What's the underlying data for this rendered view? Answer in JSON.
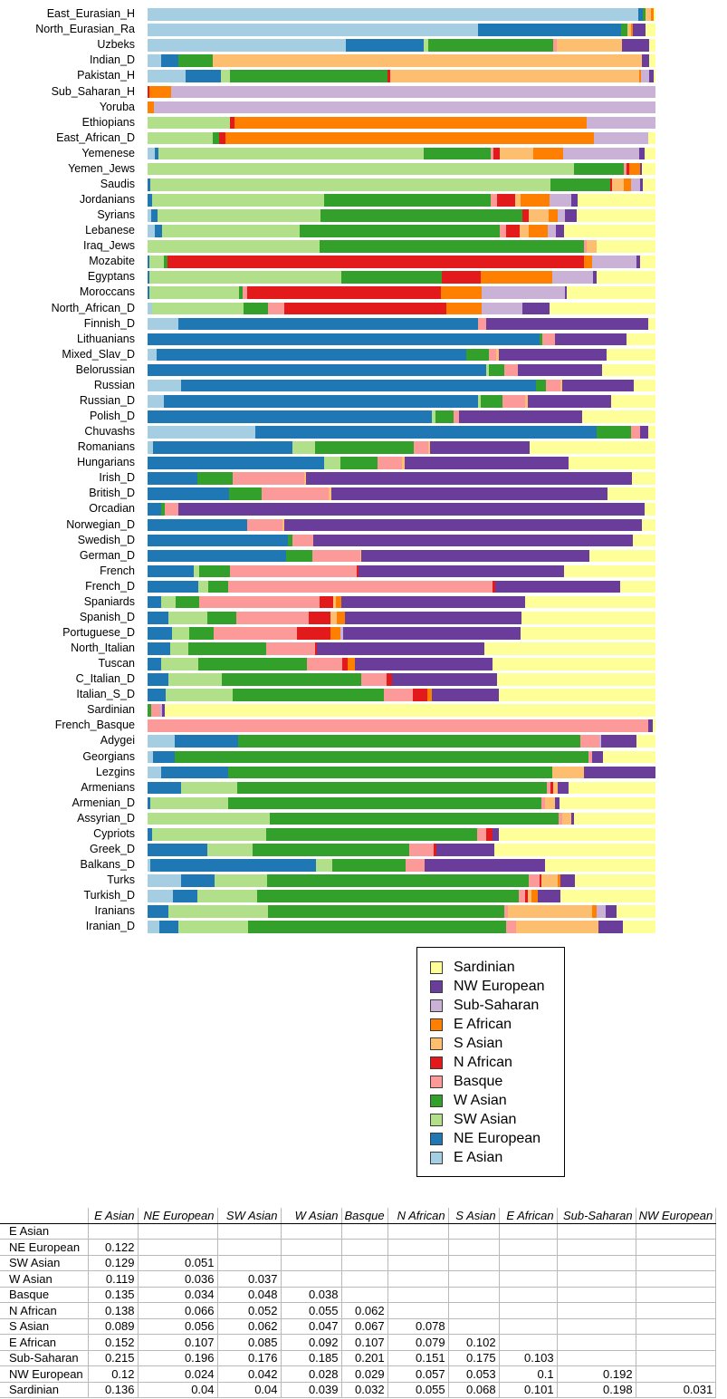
{
  "chart_data": {
    "type": "bar",
    "orientation": "horizontal-stacked",
    "title": "",
    "xlabel": "",
    "ylabel": "",
    "unit": "percent of ancestry component per population",
    "xlim": [
      0,
      100
    ],
    "grid": false,
    "components": [
      "E Asian",
      "NE European",
      "SW Asian",
      "W Asian",
      "Basque",
      "N African",
      "S Asian",
      "E African",
      "Sub-Saharan",
      "NW European",
      "Sardinian"
    ],
    "colors": [
      "#A6CEE3",
      "#1F78B4",
      "#B2DF8A",
      "#33A02C",
      "#FB9A99",
      "#E31A1C",
      "#FDBF6F",
      "#FF7F00",
      "#CAB2D6",
      "#6A3D9A",
      "#FFFF99"
    ],
    "rows": [
      {
        "label": "East_Eurasian_H",
        "values": [
          96.6,
          0.9,
          0,
          0.6,
          0,
          0,
          1.0,
          0.5,
          0,
          0,
          0.4
        ]
      },
      {
        "label": "North_Eurasian_Ra",
        "values": [
          65.1,
          28.1,
          0,
          1.2,
          0,
          0,
          0.8,
          0.4,
          0,
          2.5,
          1.9
        ]
      },
      {
        "label": "Uzbeks",
        "values": [
          39.1,
          15.3,
          0.9,
          24.6,
          0.6,
          0,
          12.9,
          0,
          0,
          5.4,
          1.2
        ]
      },
      {
        "label": "Indian_D",
        "values": [
          2.6,
          3.5,
          0,
          6.7,
          0,
          0,
          84.5,
          0,
          0,
          1.5,
          1.2
        ]
      },
      {
        "label": "Pakistan_H",
        "values": [
          7.5,
          6.9,
          1.8,
          31.1,
          0,
          0.4,
          49.1,
          0.3,
          1.6,
          0.9,
          0.4
        ]
      },
      {
        "label": "Sub_Saharan_H",
        "values": [
          0,
          0,
          0,
          0,
          0,
          0.4,
          0,
          4.2,
          95.4,
          0,
          0
        ]
      },
      {
        "label": "Yoruba",
        "values": [
          0,
          0,
          0,
          0,
          0,
          0,
          0,
          1.2,
          98.8,
          0,
          0
        ]
      },
      {
        "label": "Ethiopians",
        "values": [
          0,
          0,
          16.2,
          0,
          0,
          1.0,
          0,
          69.3,
          13.5,
          0,
          0
        ]
      },
      {
        "label": "East_African_D",
        "values": [
          0,
          0,
          12.8,
          1.3,
          0,
          1.2,
          0,
          72.6,
          10.7,
          0,
          1.4
        ]
      },
      {
        "label": "Yemenese",
        "values": [
          1.4,
          0.7,
          52.2,
          13.3,
          0.5,
          1.2,
          6.6,
          5.9,
          14.9,
          1.2,
          2.1
        ]
      },
      {
        "label": "Yemen_Jews",
        "values": [
          0,
          0,
          84.0,
          9.8,
          0.5,
          0.5,
          0,
          2.1,
          0,
          0.5,
          2.6
        ]
      },
      {
        "label": "Saudis",
        "values": [
          0,
          0.6,
          78.7,
          11.7,
          0,
          0.5,
          2.3,
          1.4,
          1.8,
          0.5,
          2.5
        ]
      },
      {
        "label": "Jordanians",
        "values": [
          0,
          0.9,
          33.8,
          32.9,
          1.2,
          3.6,
          1.1,
          5.7,
          4.3,
          1.1,
          15.4
        ]
      },
      {
        "label": "Syrians",
        "values": [
          0.7,
          1.2,
          31.9,
          39.7,
          0,
          1.1,
          3.9,
          1.8,
          1.4,
          2.3,
          15.5
        ]
      },
      {
        "label": "Lebanese",
        "values": [
          1.4,
          1.4,
          27.0,
          39.3,
          1.2,
          2.7,
          1.8,
          3.6,
          1.6,
          1.6,
          18.0
        ]
      },
      {
        "label": "Iraq_Jews",
        "values": [
          0,
          0,
          33.8,
          52.1,
          0.5,
          0,
          2.0,
          0,
          0,
          0,
          11.6
        ]
      },
      {
        "label": "Mozabite",
        "values": [
          0,
          0.4,
          2.8,
          0.7,
          0,
          81.5,
          0,
          1.6,
          8.7,
          0.7,
          3.1
        ]
      },
      {
        "label": "Egyptans",
        "values": [
          0,
          0.4,
          37.7,
          19.8,
          0,
          7.7,
          0,
          14.1,
          8.0,
          0.7,
          11.6
        ]
      },
      {
        "label": "Moroccans",
        "values": [
          0,
          0.4,
          17.6,
          0.7,
          0.9,
          38.1,
          0,
          8.0,
          16.4,
          0.4,
          17.5
        ]
      },
      {
        "label": "North_African_D",
        "values": [
          0.9,
          0,
          18.0,
          4.8,
          3.2,
          32.0,
          0,
          6.9,
          8.0,
          5.3,
          20.9
        ]
      },
      {
        "label": "Finnish_D",
        "values": [
          6.0,
          59.1,
          0,
          0,
          1.6,
          0,
          0,
          0,
          0,
          31.8,
          1.5
        ]
      },
      {
        "label": "Lithuanians",
        "values": [
          0,
          77.2,
          0,
          0.5,
          2.5,
          0,
          0,
          0,
          0,
          14.1,
          5.7
        ]
      },
      {
        "label": "Mixed_Slav_D",
        "values": [
          1.8,
          61.0,
          0,
          4.4,
          1.4,
          0,
          0.5,
          0,
          0,
          21.2,
          9.7
        ]
      },
      {
        "label": "Belorussian",
        "values": [
          0,
          66.7,
          0.5,
          3.0,
          2.7,
          0,
          0,
          0,
          0,
          16.5,
          10.6
        ]
      },
      {
        "label": "Russian",
        "values": [
          6.6,
          69.8,
          0,
          2.1,
          2.7,
          0,
          0.5,
          0,
          0,
          14.1,
          4.2
        ]
      },
      {
        "label": "Russian_D",
        "values": [
          3.2,
          61.9,
          0.5,
          4.3,
          4.4,
          0,
          0.5,
          0,
          0,
          16.5,
          8.7
        ]
      },
      {
        "label": "Polish_D",
        "values": [
          0,
          56.0,
          0.6,
          3.7,
          1.1,
          0,
          0,
          0,
          0,
          24.2,
          14.4
        ]
      },
      {
        "label": "Chuvashs",
        "values": [
          21.2,
          67.3,
          0,
          6.6,
          1.8,
          0,
          0,
          0,
          0,
          1.6,
          1.5
        ]
      },
      {
        "label": "Romanians",
        "values": [
          1.0,
          27.6,
          4.4,
          19.4,
          2.8,
          0,
          0.5,
          0,
          0,
          19.6,
          24.7
        ]
      },
      {
        "label": "Hungarians",
        "values": [
          0,
          34.7,
          3.2,
          7.3,
          4.8,
          0,
          0.7,
          0,
          0,
          32.2,
          17.1
        ]
      },
      {
        "label": "Irish_D",
        "values": [
          0,
          9.8,
          0,
          6.9,
          14.1,
          0,
          0.4,
          0,
          0,
          64.1,
          4.7
        ]
      },
      {
        "label": "British_D",
        "values": [
          0,
          16.0,
          0,
          6.4,
          13.3,
          0,
          0.4,
          0,
          0,
          54.4,
          9.5
        ]
      },
      {
        "label": "Orcadian",
        "values": [
          0,
          2.7,
          0,
          0.6,
          2.8,
          0,
          0,
          0,
          0,
          91.7,
          2.2
        ]
      },
      {
        "label": "Norwegian_D",
        "values": [
          0,
          19.6,
          0,
          0,
          6.9,
          0,
          0.4,
          0,
          0,
          70.5,
          2.6
        ]
      },
      {
        "label": "Swedish_D",
        "values": [
          0,
          27.6,
          0,
          0.9,
          4.1,
          0,
          0,
          0,
          0,
          63.0,
          4.4
        ]
      },
      {
        "label": "German_D",
        "values": [
          0,
          27.2,
          0,
          5.2,
          9.4,
          0,
          0.3,
          0,
          0,
          44.8,
          13.1
        ]
      },
      {
        "label": "French",
        "values": [
          0,
          9.1,
          1.1,
          6.0,
          24.9,
          0.5,
          0,
          0,
          0,
          40.4,
          18.0
        ]
      },
      {
        "label": "French_D",
        "values": [
          0,
          10.0,
          2.0,
          3.9,
          52.1,
          0.4,
          0,
          0,
          0,
          24.7,
          6.9
        ]
      },
      {
        "label": "Spaniards",
        "values": [
          0,
          2.7,
          2.8,
          4.6,
          23.8,
          2.7,
          0.4,
          1.2,
          0,
          36.1,
          25.7
        ]
      },
      {
        "label": "Spanish_D",
        "values": [
          0,
          4.1,
          7.7,
          5.7,
          14.2,
          4.3,
          1.2,
          1.6,
          0,
          34.9,
          26.3
        ]
      },
      {
        "label": "Portuguese_D",
        "values": [
          0,
          4.8,
          3.4,
          4.8,
          16.4,
          6.6,
          0,
          2.0,
          0.5,
          34.9,
          26.6
        ]
      },
      {
        "label": "North_Italian",
        "values": [
          0,
          4.4,
          3.6,
          15.3,
          9.6,
          0.5,
          0,
          0,
          0,
          32.9,
          33.7
        ]
      },
      {
        "label": "Tuscan",
        "values": [
          0,
          2.7,
          7.3,
          21.4,
          7.0,
          1.0,
          0,
          1.4,
          0,
          27.2,
          32.0
        ]
      },
      {
        "label": "C_Italian_D",
        "values": [
          0,
          4.1,
          10.5,
          27.4,
          5.0,
          1.2,
          0,
          0,
          0,
          20.6,
          31.2
        ]
      },
      {
        "label": "Italian_S_D",
        "values": [
          0,
          3.6,
          13.2,
          29.7,
          5.7,
          2.8,
          0,
          0.9,
          0,
          13.2,
          30.9
        ]
      },
      {
        "label": "Sardinian",
        "values": [
          0,
          0,
          0,
          0.7,
          1.8,
          0,
          0,
          0,
          0.3,
          0.6,
          96.6
        ]
      },
      {
        "label": "French_Basque",
        "values": [
          0,
          0,
          0,
          0,
          98.6,
          0,
          0,
          0,
          0,
          0.9,
          0.5
        ]
      },
      {
        "label": "Adygei",
        "values": [
          5.3,
          12.5,
          0,
          67.4,
          3.7,
          0,
          0,
          0,
          0.4,
          6.9,
          3.8
        ]
      },
      {
        "label": "Georgians",
        "values": [
          1.0,
          4.3,
          0,
          81.5,
          0.8,
          0,
          0,
          0,
          0,
          2.1,
          10.3
        ]
      },
      {
        "label": "Lezgins",
        "values": [
          2.6,
          13.2,
          0,
          63.9,
          0,
          0,
          6.2,
          0,
          0,
          14.1,
          0
        ]
      },
      {
        "label": "Armenians",
        "values": [
          0,
          6.6,
          11.0,
          61.0,
          0.7,
          0.5,
          1.0,
          0,
          0,
          2.0,
          17.2
        ]
      },
      {
        "label": "Armenian_D",
        "values": [
          0,
          0.5,
          15.3,
          61.7,
          0.8,
          0,
          2.0,
          0,
          0,
          0.8,
          18.9
        ]
      },
      {
        "label": "Assyrian_D",
        "values": [
          0,
          0,
          24.0,
          56.9,
          0.7,
          0,
          1.8,
          0,
          0,
          0.5,
          16.1
        ]
      },
      {
        "label": "Cypriots",
        "values": [
          0,
          0.9,
          22.4,
          41.6,
          1.7,
          1.4,
          0,
          0,
          0,
          1.1,
          30.9
        ]
      },
      {
        "label": "Greek_D",
        "values": [
          0,
          11.7,
          8.9,
          31.0,
          4.8,
          0.4,
          0,
          0,
          0,
          11.4,
          31.8
        ]
      },
      {
        "label": "Balkans_D",
        "values": [
          0.5,
          32.7,
          3.2,
          14.4,
          3.7,
          0,
          0,
          0,
          0,
          23.7,
          21.8
        ]
      },
      {
        "label": "Turks",
        "values": [
          6.6,
          6.6,
          10.3,
          51.6,
          2.0,
          0.5,
          3.2,
          0.4,
          0,
          3.0,
          15.8
        ]
      },
      {
        "label": "Turkish_D",
        "values": [
          5.0,
          4.8,
          11.7,
          51.5,
          1.4,
          0.5,
          0.7,
          1.3,
          0,
          4.4,
          18.7
        ]
      },
      {
        "label": "Iranians",
        "values": [
          0,
          4.1,
          19.6,
          46.6,
          0.7,
          0,
          16.5,
          0.9,
          1.8,
          2.1,
          7.7
        ]
      },
      {
        "label": "Iranian_D",
        "values": [
          2.3,
          3.7,
          13.7,
          50.9,
          2.0,
          0,
          16.2,
          0,
          0,
          4.8,
          6.4
        ]
      }
    ]
  },
  "legend": {
    "entries": [
      {
        "label": "Sardinian",
        "color": "#FFFF99"
      },
      {
        "label": "NW European",
        "color": "#6A3D9A"
      },
      {
        "label": "Sub-Saharan",
        "color": "#CAB2D6"
      },
      {
        "label": "E African",
        "color": "#FF7F00"
      },
      {
        "label": "S Asian",
        "color": "#FDBF6F"
      },
      {
        "label": "N African",
        "color": "#E31A1C"
      },
      {
        "label": "Basque",
        "color": "#FB9A99"
      },
      {
        "label": "W Asian",
        "color": "#33A02C"
      },
      {
        "label": "SW Asian",
        "color": "#B2DF8A"
      },
      {
        "label": "NE European",
        "color": "#1F78B4"
      },
      {
        "label": "E Asian",
        "color": "#A6CEE3"
      }
    ]
  },
  "table": {
    "title": "pairwise distance matrix",
    "columns": [
      "",
      "E Asian",
      "NE European",
      "SW Asian",
      "W Asian",
      "Basque",
      "N African",
      "S Asian",
      "E African",
      "Sub-Saharan",
      "NW European"
    ],
    "rows": [
      {
        "label": "E Asian",
        "values": []
      },
      {
        "label": "NE European",
        "values": [
          "0.122"
        ]
      },
      {
        "label": "SW Asian",
        "values": [
          "0.129",
          "0.051"
        ]
      },
      {
        "label": "W Asian",
        "values": [
          "0.119",
          "0.036",
          "0.037"
        ]
      },
      {
        "label": "Basque",
        "values": [
          "0.135",
          "0.034",
          "0.048",
          "0.038"
        ]
      },
      {
        "label": "N African",
        "values": [
          "0.138",
          "0.066",
          "0.052",
          "0.055",
          "0.062"
        ]
      },
      {
        "label": "S Asian",
        "values": [
          "0.089",
          "0.056",
          "0.062",
          "0.047",
          "0.067",
          "0.078"
        ]
      },
      {
        "label": "E African",
        "values": [
          "0.152",
          "0.107",
          "0.085",
          "0.092",
          "0.107",
          "0.079",
          "0.102"
        ]
      },
      {
        "label": "Sub-Saharan",
        "values": [
          "0.215",
          "0.196",
          "0.176",
          "0.185",
          "0.201",
          "0.151",
          "0.175",
          "0.103"
        ]
      },
      {
        "label": "NW European",
        "values": [
          "0.12",
          "0.024",
          "0.042",
          "0.028",
          "0.029",
          "0.057",
          "0.053",
          "0.1",
          "0.192"
        ]
      },
      {
        "label": "Sardinian",
        "values": [
          "0.136",
          "0.04",
          "0.04",
          "0.039",
          "0.032",
          "0.055",
          "0.068",
          "0.101",
          "0.198",
          "0.031"
        ]
      }
    ]
  }
}
